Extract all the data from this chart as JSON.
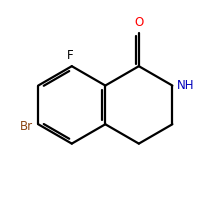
{
  "background_color": "#ffffff",
  "bond_color": "#000000",
  "label_colors": {
    "O": "#ff0000",
    "NH": "#0000bb",
    "F": "#000000",
    "Br": "#8B4513"
  },
  "figsize": [
    2.0,
    2.0
  ],
  "dpi": 100
}
